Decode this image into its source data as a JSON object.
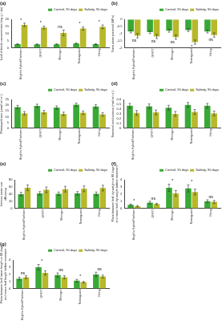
{
  "chart_data": [
    {
      "type": "bar",
      "title": "(a)",
      "y_label": [
        "Leaf chloride concentration (mg g⁻¹ dw)"
      ],
      "categories": [
        "Bright's Hybrid/Fairbairn",
        "GF677",
        "Monegro",
        "Nemaguard",
        "Viking"
      ],
      "series": [
        {
          "name": "Control, 90 days",
          "color": "#39a935",
          "values": [
            2.6,
            2.4,
            2.5,
            3.0,
            2.6
          ],
          "errors": [
            0.3,
            0.3,
            0.3,
            0.4,
            0.3
          ]
        },
        {
          "name": "Salinity, 90 days",
          "color": "#b7b82a",
          "values": [
            16.2,
            14.3,
            10.5,
            13.6,
            14.8
          ],
          "errors": [
            1.2,
            1.0,
            2.0,
            1.1,
            1.3
          ]
        }
      ],
      "annotations": [
        "*",
        "*",
        "ns",
        "*",
        "*"
      ],
      "ylim": [
        0,
        20
      ],
      "yticks": [
        0,
        5,
        10,
        15,
        20
      ],
      "grid": false,
      "legend": "upper right"
    },
    {
      "type": "bar",
      "title": "(b)",
      "y_label": [
        "Stem water potential (MPa)"
      ],
      "categories": [
        "Bright's Hybrid/Fairbairn",
        "GF677",
        "Monegro",
        "Nemaguard",
        "Viking"
      ],
      "series": [
        {
          "name": "Control, 90 days",
          "color": "#39a935",
          "values": [
            -0.85,
            -0.9,
            -0.8,
            -0.75,
            -0.85
          ],
          "errors": [
            0.1,
            0.1,
            0.1,
            0.1,
            0.1
          ]
        },
        {
          "name": "Salinity, 90 days",
          "color": "#b7b82a",
          "values": [
            -1.15,
            -1.2,
            -1.25,
            -1.6,
            -1.1
          ],
          "errors": [
            0.15,
            0.15,
            0.15,
            0.15,
            0.15
          ]
        }
      ],
      "annotations": [
        "ns",
        "ns",
        "ns",
        "*",
        "ns"
      ],
      "ylim": [
        -2,
        0
      ],
      "yticks": [
        -2,
        -1.5,
        -1,
        -0.5,
        0
      ],
      "grid": false,
      "legend": "upper right"
    },
    {
      "type": "bar",
      "title": "(c)",
      "y_label": [
        "Photosynthesis (μmol m⁻² s⁻¹)"
      ],
      "categories": [
        "Bright's Hybrid/Fairbairn",
        "GF677",
        "Monegro",
        "Nemaguard",
        "Viking"
      ],
      "series": [
        {
          "name": "Control, 90 days",
          "color": "#39a935",
          "values": [
            18.5,
            19.5,
            18,
            20.5,
            19
          ],
          "errors": [
            1.5,
            1.5,
            1.5,
            1.5,
            1.5
          ]
        },
        {
          "name": "Salinity, 90 days",
          "color": "#b7b82a",
          "values": [
            13,
            14,
            12.5,
            13.5,
            12
          ],
          "errors": [
            1.5,
            1.5,
            1.5,
            1.5,
            1.5
          ]
        }
      ],
      "ylim": [
        0,
        25
      ],
      "yticks": [
        0,
        5,
        10,
        15,
        20,
        25
      ],
      "grid": false,
      "legend": "upper right"
    },
    {
      "type": "bar",
      "title": "(d)",
      "y_label": [
        "Stomatal conductance (mol m⁻² s⁻¹)"
      ],
      "categories": [
        "Bright's Hybrid/Fairbairn",
        "GF677",
        "Monegro",
        "Nemaguard",
        "Viking"
      ],
      "series": [
        {
          "name": "Control, 90 days",
          "color": "#39a935",
          "values": [
            0.47,
            0.46,
            0.43,
            0.49,
            0.47
          ],
          "errors": [
            0.05,
            0.05,
            0.05,
            0.05,
            0.05
          ]
        },
        {
          "name": "Salinity, 90 days",
          "color": "#b7b82a",
          "values": [
            0.32,
            0.33,
            0.3,
            0.34,
            0.31
          ],
          "errors": [
            0.05,
            0.05,
            0.05,
            0.05,
            0.05
          ]
        }
      ],
      "ylim": [
        0,
        0.6
      ],
      "yticks": [
        0,
        0.1,
        0.2,
        0.3,
        0.4,
        0.5,
        0.6
      ],
      "grid": false,
      "legend": "upper right"
    },
    {
      "type": "bar",
      "title": "(e)",
      "y_label": [
        "Intrinsic water use",
        "efficiency"
      ],
      "categories": [
        "Bright's Hybrid/Fairbairn",
        "GF677",
        "Monegro",
        "Nemaguard",
        "Viking"
      ],
      "series": [
        {
          "name": "Control, 90 days",
          "color": "#39a935",
          "values": [
            40,
            42,
            41,
            42,
            41
          ],
          "errors": [
            5,
            5,
            5,
            5,
            5
          ]
        },
        {
          "name": "Salinity, 90 days",
          "color": "#b7b82a",
          "values": [
            58,
            52,
            54,
            55,
            57
          ],
          "errors": [
            8,
            8,
            8,
            8,
            8
          ]
        }
      ],
      "ylim": [
        0,
        80
      ],
      "yticks": [
        0,
        20,
        40,
        60,
        80
      ],
      "grid": false,
      "legend": "upper right"
    },
    {
      "type": "bar",
      "title": "(f)",
      "y_label": [
        "Ratio between leaf dry weight at 90 days",
        "and mean leaf dry weight before treatment"
      ],
      "categories": [
        "Bright's Hybrid/Fairbairn",
        "GF677",
        "Monegro",
        "Nemaguard",
        "Viking"
      ],
      "series": [
        {
          "name": "Control, 90 days",
          "color": "#39a935",
          "values": [
            0.5,
            0.8,
            2.9,
            2.8,
            1.0
          ],
          "errors": [
            0.1,
            0.2,
            0.5,
            0.5,
            0.2
          ]
        },
        {
          "name": "Salinity, 90 days",
          "color": "#b7b82a",
          "values": [
            0.3,
            0.6,
            2.1,
            2.3,
            0.9
          ],
          "errors": [
            0.1,
            0.1,
            0.4,
            0.4,
            0.2
          ]
        }
      ],
      "annotations": [
        "*",
        "ns",
        "*",
        "*",
        "ns"
      ],
      "ylim": [
        0,
        4
      ],
      "yticks": [
        0,
        1,
        2,
        3,
        4
      ],
      "grid": false,
      "legend": "upper right"
    },
    {
      "type": "bar",
      "title": "(g)",
      "y_label": [
        "Ratio between leaf mean length at 90 days",
        "and mean leaf length before treatment"
      ],
      "categories": [
        "Bright's Hybrid/Fairbairn",
        "GF677",
        "Monegro",
        "Nemaguard",
        "Viking"
      ],
      "series": [
        {
          "name": "Control, 90 days",
          "color": "#39a935",
          "values": [
            1.4,
            3.0,
            1.9,
            1.1,
            2.0
          ],
          "errors": [
            0.2,
            0.4,
            0.3,
            0.2,
            0.3
          ]
        },
        {
          "name": "Salinity, 90 days",
          "color": "#b7b82a",
          "values": [
            1.6,
            2.2,
            1.6,
            0.9,
            1.7
          ],
          "errors": [
            0.2,
            0.3,
            0.2,
            0.1,
            0.2
          ]
        }
      ],
      "annotations": [
        "ns",
        "*",
        "ns",
        "*",
        "ns"
      ],
      "ylim": [
        0,
        4
      ],
      "yticks": [
        0,
        1,
        2,
        3,
        4
      ],
      "grid": false,
      "legend": "upper right"
    }
  ]
}
